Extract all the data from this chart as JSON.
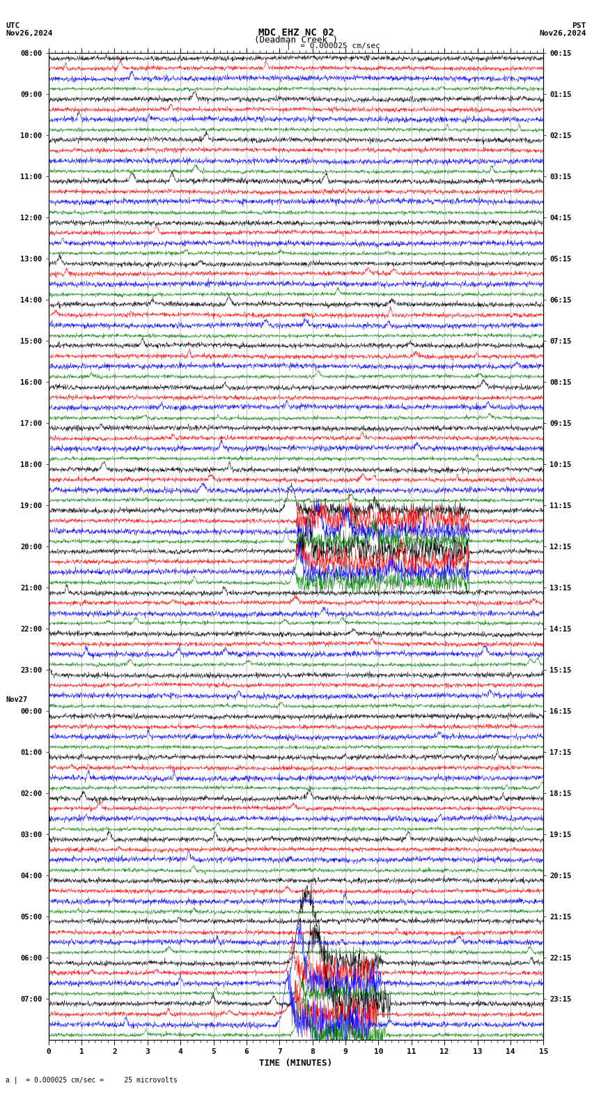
{
  "title_line1": "MDC EHZ NC 02",
  "title_line2": "(Deadman Creek )",
  "scale_label": "= 0.000025 cm/sec",
  "utc_label": "UTC",
  "utc_date": "Nov26,2024",
  "pst_label": "PST",
  "pst_date": "Nov26,2024",
  "xlabel": "TIME (MINUTES)",
  "bottom_note": "= 0.000025 cm/sec =     25 microvolts",
  "xmin": 0,
  "xmax": 15,
  "trace_colors": [
    "black",
    "red",
    "blue",
    "green"
  ],
  "background_color": "white",
  "grid_color": "#888888",
  "figsize": [
    8.5,
    15.84
  ],
  "dpi": 100,
  "utc_labels": [
    "08:00",
    "09:00",
    "10:00",
    "11:00",
    "12:00",
    "13:00",
    "14:00",
    "15:00",
    "16:00",
    "17:00",
    "18:00",
    "19:00",
    "20:00",
    "21:00",
    "22:00",
    "23:00",
    "00:00",
    "01:00",
    "02:00",
    "03:00",
    "04:00",
    "05:00",
    "06:00",
    "07:00"
  ],
  "pst_labels": [
    "00:15",
    "01:15",
    "02:15",
    "03:15",
    "04:15",
    "05:15",
    "06:15",
    "07:15",
    "08:15",
    "09:15",
    "10:15",
    "11:15",
    "12:15",
    "13:15",
    "14:15",
    "15:15",
    "16:15",
    "17:15",
    "18:15",
    "19:15",
    "20:15",
    "21:15",
    "22:15",
    "23:15"
  ]
}
